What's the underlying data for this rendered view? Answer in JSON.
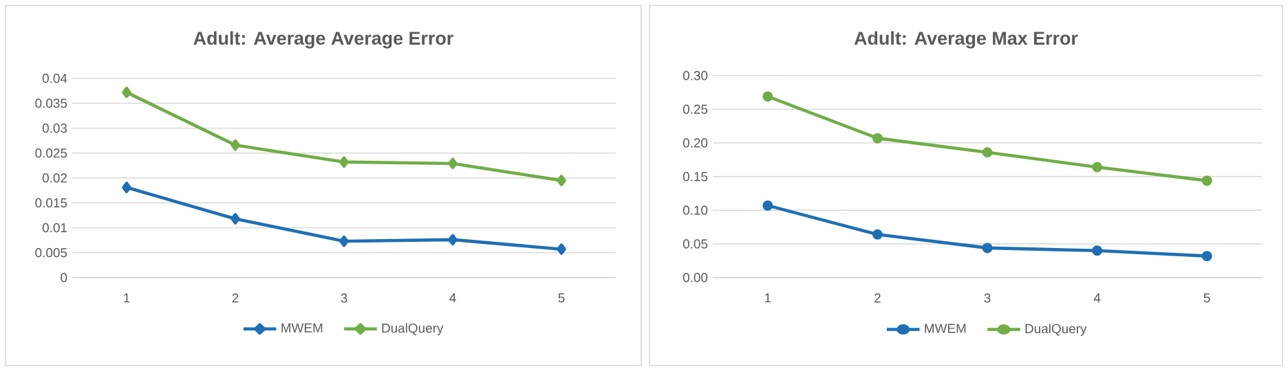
{
  "chart_data": [
    {
      "type": "line",
      "title": "Adult: Average Average Error",
      "categories": [
        "1",
        "2",
        "3",
        "4",
        "5"
      ],
      "series": [
        {
          "name": "MWEM",
          "color": "#1f6fb4",
          "values": [
            0.0181,
            0.0118,
            0.0073,
            0.0076,
            0.0057
          ]
        },
        {
          "name": "DualQuery",
          "color": "#70ad47",
          "values": [
            0.0372,
            0.0266,
            0.0232,
            0.0229,
            0.0195
          ]
        }
      ],
      "ylim": [
        0,
        0.04
      ],
      "yticks": [
        0,
        0.005,
        0.01,
        0.015,
        0.02,
        0.025,
        0.03,
        0.035,
        0.04
      ],
      "grid": "y",
      "legend": "bottom",
      "marker": "diamond",
      "line_style": "solid"
    },
    {
      "type": "line",
      "title": "Adult: Average Max Error",
      "categories": [
        "1",
        "2",
        "3",
        "4",
        "5"
      ],
      "series": [
        {
          "name": "MWEM",
          "color": "#1f6fb4",
          "values": [
            0.107,
            0.064,
            0.044,
            0.04,
            0.032
          ]
        },
        {
          "name": "DualQuery",
          "color": "#70ad47",
          "values": [
            0.269,
            0.207,
            0.186,
            0.164,
            0.144
          ]
        }
      ],
      "ylim": [
        0,
        0.3
      ],
      "yticks": [
        {
          "value": 0,
          "label": "0.00"
        },
        {
          "value": 0.05,
          "label": "0.05"
        },
        {
          "value": 0.1,
          "label": "0.10"
        },
        {
          "value": 0.15,
          "label": "0.15"
        },
        {
          "value": 0.2,
          "label": "0.20"
        },
        {
          "value": 0.25,
          "label": "0.25"
        },
        {
          "value": 0.3,
          "label": "0.30"
        }
      ],
      "grid": "y",
      "legend": "bottom",
      "marker": "circle",
      "line_style": "solid"
    }
  ]
}
